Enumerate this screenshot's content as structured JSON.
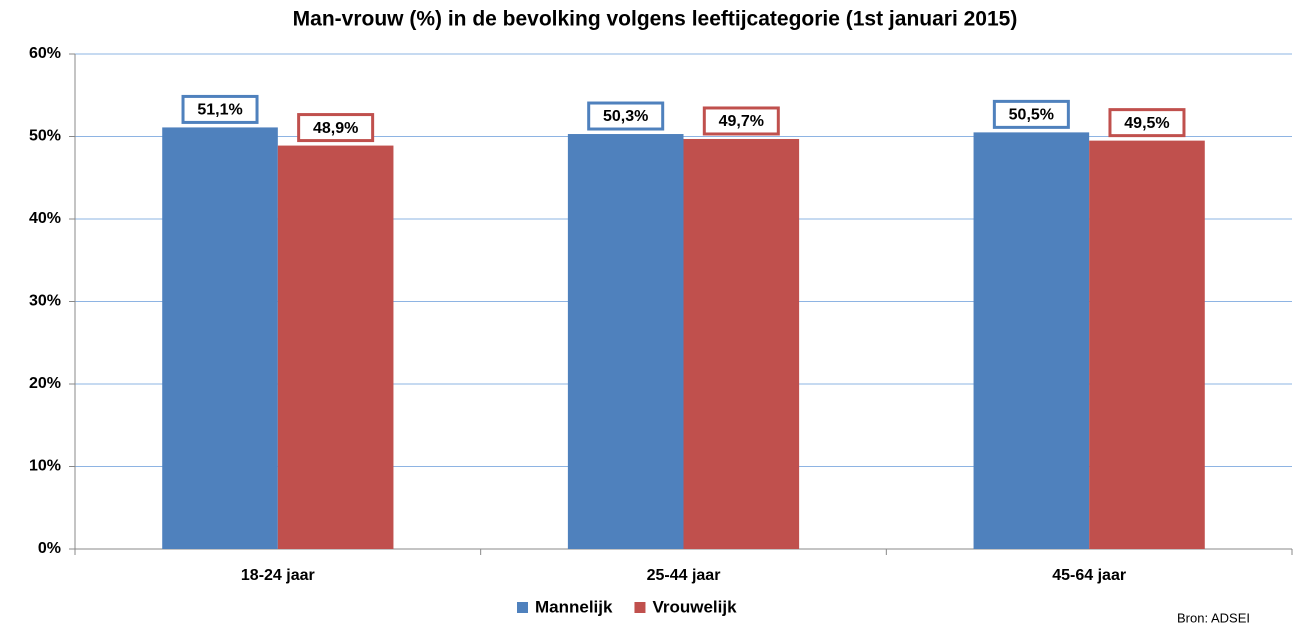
{
  "chart_data": {
    "type": "bar",
    "title": "Man-vrouw (%) in de bevolking volgens leeftijcategorie (1st januari 2015)",
    "categories": [
      "18-24 jaar",
      "25-44 jaar",
      "45-64 jaar"
    ],
    "series": [
      {
        "name": "Mannelijk",
        "color": "#4f81bd",
        "values": [
          51.1,
          50.3,
          50.5
        ],
        "value_labels": [
          "51,1%",
          "50,3%",
          "50,5%"
        ]
      },
      {
        "name": "Vrouwelijk",
        "color": "#c0504d",
        "values": [
          48.9,
          49.7,
          49.5
        ],
        "value_labels": [
          "48,9%",
          "49,7%",
          "49,5%"
        ]
      }
    ],
    "ylim": [
      0,
      60
    ],
    "yticks": [
      {
        "value": 0,
        "label": "0%"
      },
      {
        "value": 10,
        "label": "10%"
      },
      {
        "value": 20,
        "label": "20%"
      },
      {
        "value": 30,
        "label": "30%"
      },
      {
        "value": 40,
        "label": "40%"
      },
      {
        "value": 50,
        "label": "50%"
      },
      {
        "value": 60,
        "label": "60%"
      }
    ],
    "grid": true,
    "legend": "bottom",
    "source": "Bron: ADSEI"
  }
}
